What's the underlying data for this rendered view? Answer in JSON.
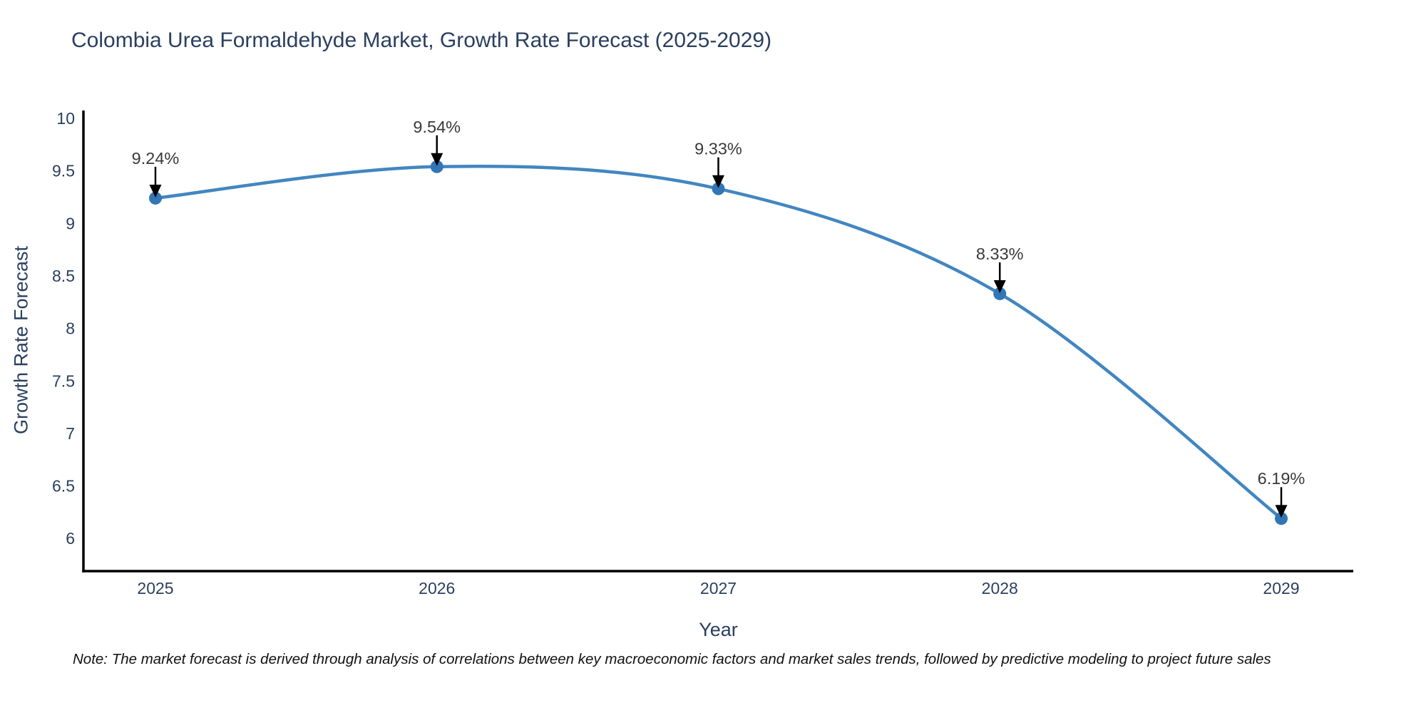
{
  "page": {
    "background": "#ffffff"
  },
  "footnote": "Note: The market forecast is derived through analysis of correlations between key macroeconomic factors and market sales trends, followed by predictive modeling to project future sales",
  "chart_data": {
    "type": "line",
    "title": "Colombia Urea Formaldehyde Market, Growth Rate Forecast (2025-2029)",
    "xlabel": "Year",
    "ylabel": "Growth Rate Forecast",
    "x": [
      2025,
      2026,
      2027,
      2028,
      2029
    ],
    "y": [
      9.24,
      9.54,
      9.33,
      8.33,
      6.19
    ],
    "point_labels": [
      "9.24%",
      "9.54%",
      "9.33%",
      "8.33%",
      "6.19%"
    ],
    "x_tick_labels": [
      "2025",
      "2026",
      "2027",
      "2028",
      "2029"
    ],
    "y_ticks": [
      6,
      6.5,
      7,
      7.5,
      8,
      8.5,
      9,
      9.5,
      10
    ],
    "ylim": [
      5.7,
      10
    ],
    "grid": false,
    "legend_position": "none",
    "line_shape": "spline",
    "colors": {
      "line": "#4286c0",
      "marker": "#3276b5",
      "axis": "#000000",
      "tick_label": "#2a3f5f",
      "annotation_text": "#3a3a3a",
      "annotation_arrow": "#000000"
    }
  }
}
